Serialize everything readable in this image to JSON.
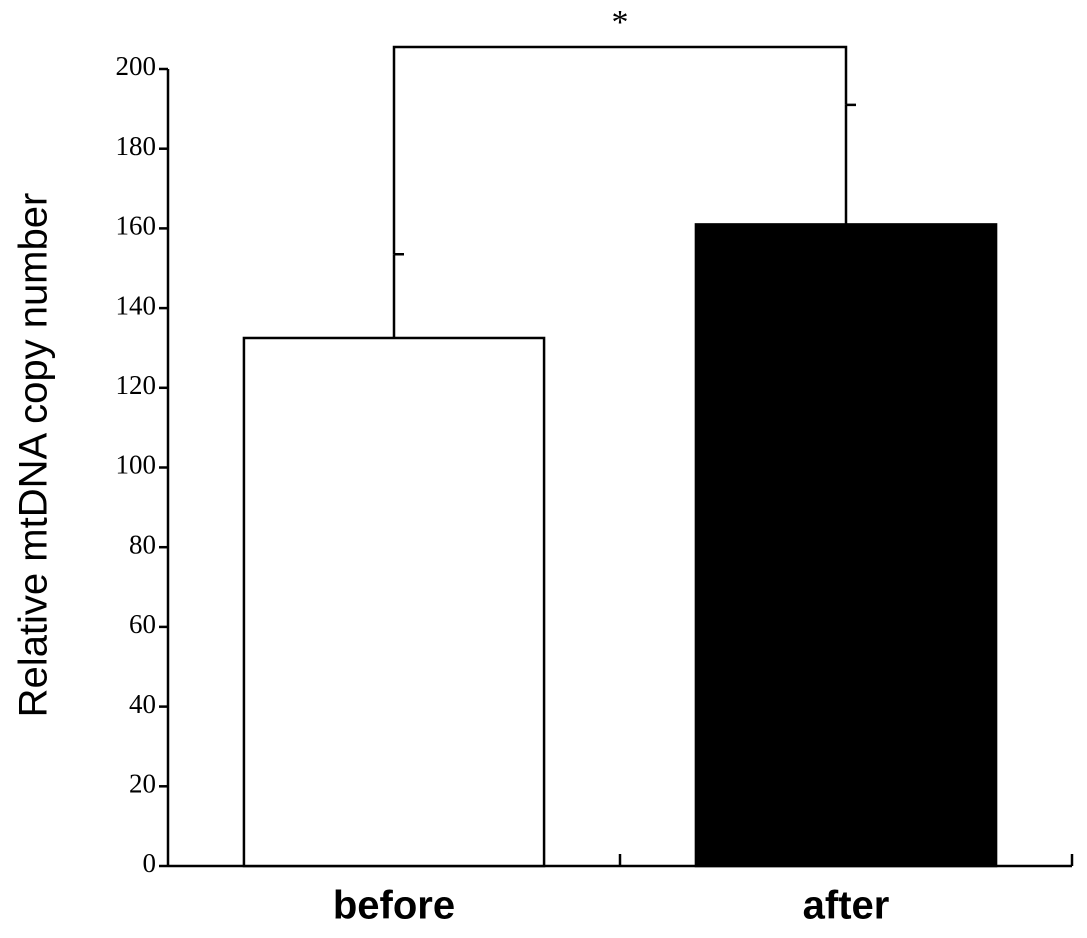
{
  "chart_data": {
    "type": "bar",
    "y_label": "Relative mtDNA copy number",
    "categories": [
      "before",
      "after"
    ],
    "values": [
      132.5,
      161
    ],
    "errors": [
      21,
      30
    ],
    "colors": [
      "#ffffff",
      "#000000"
    ],
    "annotation": "*",
    "ylim": [
      0,
      200
    ],
    "yticks": [
      0,
      20,
      40,
      60,
      80,
      100,
      120,
      140,
      160,
      180,
      200
    ],
    "grid": false
  }
}
